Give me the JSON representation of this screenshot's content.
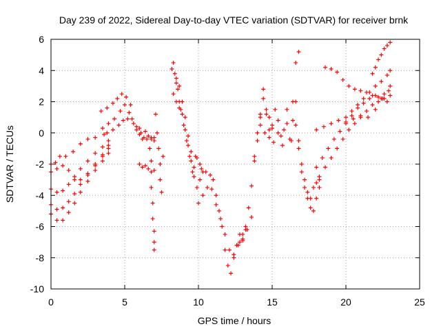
{
  "chart_data": {
    "type": "scatter",
    "title": "Day 239 of 2022, Sidereal Day-to-day VTEC variation (SDTVAR) for receiver brnk",
    "xlabel": "GPS time / hours",
    "ylabel": "SDTVAR / TECUs",
    "xlim": [
      0,
      25
    ],
    "ylim": [
      -10,
      6
    ],
    "xticks": [
      0,
      5,
      10,
      15,
      20,
      25
    ],
    "yticks": [
      -10,
      -8,
      -6,
      -4,
      -2,
      0,
      2,
      4,
      6
    ],
    "xtick_labels": [
      "0",
      "5",
      "10",
      "15",
      "20",
      "25"
    ],
    "ytick_labels": [
      "-10",
      "-8",
      "-6",
      "-4",
      "-2",
      "0",
      "2",
      "4",
      "6"
    ],
    "grid": true,
    "marker": "plus",
    "color": "#ff0000",
    "series": [
      {
        "x": [
          0.0,
          0.3,
          0.6,
          1.0,
          1.5,
          2.0,
          2.5,
          3.0,
          3.6
        ],
        "y": [
          -2.5,
          -1.9,
          -1.5,
          -1.5,
          -1.2,
          -0.7,
          -0.4,
          -0.3,
          -0.1
        ]
      },
      {
        "x": [
          0.0,
          0.4,
          0.8,
          1.2,
          1.6,
          2.0,
          2.5,
          3.0,
          3.5,
          3.9
        ],
        "y": [
          -2.0,
          -2.3,
          -2.1,
          -2.4,
          -3.0,
          -3.0,
          -2.6,
          -2.0,
          -1.4,
          -0.8
        ]
      },
      {
        "x": [
          0.0,
          0.4,
          0.8,
          1.2,
          1.6,
          2.0,
          2.5,
          3.0,
          3.5,
          3.9
        ],
        "y": [
          -3.6,
          -3.8,
          -3.7,
          -3.3,
          -2.8,
          -2.3,
          -1.8,
          -1.3,
          -0.9,
          -0.5
        ]
      },
      {
        "x": [
          0.0,
          0.4,
          0.8,
          1.2,
          1.6,
          2.0,
          2.5,
          3.0,
          3.5,
          3.9
        ],
        "y": [
          -4.6,
          -4.9,
          -4.8,
          -4.4,
          -3.9,
          -3.3,
          -2.7,
          -2.1,
          -1.5,
          -1.0
        ]
      },
      {
        "x": [
          0.0,
          0.4,
          0.8,
          1.2,
          1.6,
          2.0,
          2.5,
          3.0,
          3.5,
          3.9
        ],
        "y": [
          -5.2,
          -5.6,
          -5.6,
          -5.1,
          -4.5,
          -3.8,
          -3.1,
          -2.4,
          -1.8,
          -1.3
        ]
      },
      {
        "x": [
          3.4,
          3.8,
          4.2,
          4.5,
          4.8,
          5.1,
          5.4
        ],
        "y": [
          1.4,
          1.6,
          1.9,
          2.2,
          2.5,
          2.3,
          1.8
        ]
      },
      {
        "x": [
          3.5,
          3.9,
          4.3,
          4.7,
          5.0,
          5.3
        ],
        "y": [
          0.3,
          0.6,
          0.9,
          1.4,
          1.8,
          1.3
        ]
      },
      {
        "x": [
          3.8,
          4.2,
          4.6,
          4.9,
          5.2,
          5.6,
          6.0
        ],
        "y": [
          0.0,
          0.2,
          0.5,
          0.8,
          0.9,
          0.6,
          0.3
        ]
      },
      {
        "x": [
          5.5,
          5.8,
          6.1,
          6.3,
          6.5,
          6.8,
          7.0
        ],
        "y": [
          0.9,
          0.4,
          0.0,
          -0.3,
          -0.4,
          -0.3,
          -0.5
        ]
      },
      {
        "x": [
          5.8,
          6.0,
          6.2,
          6.4,
          6.6,
          6.8,
          7.0
        ],
        "y": [
          0.2,
          -0.1,
          -0.4,
          0.1,
          -0.2,
          -0.4,
          -0.3
        ]
      },
      {
        "x": [
          6.0,
          6.2,
          6.4,
          6.6,
          6.8,
          7.0
        ],
        "y": [
          -2.0,
          -2.2,
          -2.1,
          -2.3,
          -1.8,
          -2.4
        ]
      },
      {
        "x": [
          6.7,
          6.8,
          6.8,
          6.9,
          6.9,
          7.0,
          7.0,
          7.0
        ],
        "y": [
          -1.0,
          -2.5,
          -3.5,
          -4.5,
          -5.5,
          -6.3,
          -7.0,
          -7.5
        ]
      },
      {
        "x": [
          7.1,
          7.2,
          7.3,
          7.4,
          7.4,
          7.5,
          7.6
        ],
        "y": [
          1.2,
          0.0,
          -1.0,
          -2.0,
          -3.0,
          -3.8,
          -1.5
        ]
      },
      {
        "x": [
          8.2,
          8.3,
          8.4,
          8.5,
          8.6,
          8.7,
          8.8,
          9.0,
          9.2,
          9.4,
          9.6,
          9.8
        ],
        "y": [
          4.1,
          4.5,
          3.8,
          3.2,
          2.8,
          2.0,
          1.5,
          0.5,
          -0.5,
          -1.5,
          -2.5,
          -1.5
        ]
      },
      {
        "x": [
          8.3,
          8.5,
          8.7,
          8.9,
          9.1,
          9.3,
          9.5,
          9.7,
          9.9,
          10.1,
          10.3
        ],
        "y": [
          2.5,
          2.0,
          1.6,
          1.2,
          0.2,
          -0.8,
          -1.8,
          -2.2,
          -1.6,
          -2.0,
          -2.5
        ]
      },
      {
        "x": [
          8.5,
          8.7,
          8.9,
          9.1,
          9.3,
          9.5,
          9.7,
          9.9,
          10.1
        ],
        "y": [
          3.5,
          3.0,
          2.0,
          1.0,
          -0.2,
          -1.2,
          -2.8,
          -3.5,
          -3.0
        ]
      },
      {
        "x": [
          10.2,
          10.5,
          10.8,
          11.0,
          11.2,
          11.4,
          11.6,
          11.8,
          12.0,
          12.2,
          12.4,
          12.6,
          12.8,
          13.0,
          13.2
        ],
        "y": [
          -2.3,
          -2.5,
          -2.7,
          -3.0,
          -4.0,
          -5.0,
          -6.0,
          -7.5,
          -8.5,
          -9.0,
          -8.0,
          -7.2,
          -7.0,
          -6.5,
          -6.0
        ]
      },
      {
        "x": [
          10.0,
          10.3,
          10.6,
          10.9,
          11.2,
          11.5,
          11.8,
          12.1,
          12.4,
          12.7,
          13.0,
          13.3,
          13.6
        ],
        "y": [
          -4.5,
          -4.0,
          -3.5,
          -3.6,
          -4.6,
          -5.5,
          -6.5,
          -7.5,
          -7.8,
          -7.2,
          -6.8,
          -6.2,
          -5.4
        ]
      },
      {
        "x": [
          12.6,
          12.8,
          13.0,
          13.2,
          13.4,
          13.6,
          13.8,
          14.0,
          14.2,
          14.4,
          14.6,
          14.8,
          15.0
        ],
        "y": [
          -7.2,
          -6.5,
          -6.9,
          -6.2,
          -4.8,
          -3.4,
          -1.5,
          0.0,
          1.2,
          2.2,
          1.5,
          1.0,
          0.3
        ]
      },
      {
        "x": [
          13.8,
          14.0,
          14.2,
          14.4,
          14.6,
          14.8,
          15.0,
          15.2,
          15.4,
          15.6,
          15.8,
          16.0,
          16.2,
          16.4,
          16.6
        ],
        "y": [
          -1.8,
          -0.5,
          1.0,
          2.8,
          1.2,
          0.2,
          0.5,
          1.5,
          0.8,
          -0.2,
          0.2,
          0.6,
          -0.4,
          0.8,
          4.5
        ]
      },
      {
        "x": [
          14.2,
          14.5,
          14.8,
          15.1,
          15.4,
          15.7,
          16.0,
          16.3,
          16.6,
          16.8
        ],
        "y": [
          0.5,
          0.0,
          -0.3,
          -0.6,
          0.0,
          -0.8,
          1.5,
          -0.5,
          2.0,
          5.2
        ]
      },
      {
        "x": [
          16.4,
          16.6,
          16.8,
          17.0,
          17.2,
          17.4,
          17.6,
          17.8,
          18.0,
          18.2
        ],
        "y": [
          2.0,
          0.5,
          -1.0,
          -2.5,
          -3.5,
          -4.2,
          -4.8,
          -5.0,
          -4.2,
          -3.5
        ]
      },
      {
        "x": [
          16.8,
          17.0,
          17.2,
          17.4,
          17.6,
          17.8,
          18.0,
          18.2
        ],
        "y": [
          -0.5,
          -2.0,
          -3.0,
          -3.8,
          -4.2,
          -3.5,
          -3.2,
          -3.0
        ]
      },
      {
        "x": [
          18.2,
          18.6,
          19.0,
          19.4,
          19.8,
          20.2,
          20.6,
          21.0,
          21.4,
          21.8,
          22.2,
          22.6,
          23.0
        ],
        "y": [
          -2.8,
          -2.2,
          -1.6,
          -1.0,
          -0.4,
          0.2,
          0.6,
          1.0,
          1.4,
          1.8,
          2.0,
          2.2,
          2.4
        ]
      },
      {
        "x": [
          18.0,
          18.4,
          18.8,
          19.2,
          19.6,
          20.0,
          20.4,
          20.8,
          21.2,
          21.6,
          22.0,
          22.4,
          22.8
        ],
        "y": [
          -2.2,
          -1.6,
          -1.0,
          -0.4,
          0.1,
          0.6,
          1.1,
          1.6,
          1.9,
          2.2,
          2.4,
          2.2,
          2.0
        ]
      },
      {
        "x": [
          18.0,
          18.5,
          19.0,
          19.5,
          20.0,
          20.5,
          21.0,
          21.5,
          22.0,
          22.5,
          23.0
        ],
        "y": [
          0.2,
          0.4,
          0.6,
          0.8,
          0.7,
          0.9,
          1.1,
          1.0,
          1.5,
          2.2,
          3.0
        ]
      },
      {
        "x": [
          18.6,
          19.0,
          19.4,
          19.8,
          20.2,
          20.6,
          21.0,
          21.4,
          21.8,
          22.2,
          22.6,
          22.9
        ],
        "y": [
          4.2,
          4.1,
          3.9,
          3.4,
          3.0,
          2.8,
          2.7,
          2.6,
          2.4,
          2.3,
          2.5,
          2.7
        ]
      },
      {
        "x": [
          20.0,
          20.4,
          20.8,
          21.2,
          21.6,
          22.0,
          22.4,
          22.8,
          23.0
        ],
        "y": [
          1.0,
          1.4,
          1.8,
          2.2,
          2.6,
          3.0,
          3.3,
          3.7,
          4.0
        ]
      },
      {
        "x": [
          21.8,
          22.0,
          22.2,
          22.4,
          22.6,
          22.8,
          23.0
        ],
        "y": [
          3.8,
          4.2,
          4.7,
          5.0,
          5.4,
          5.6,
          5.8
        ]
      }
    ]
  }
}
